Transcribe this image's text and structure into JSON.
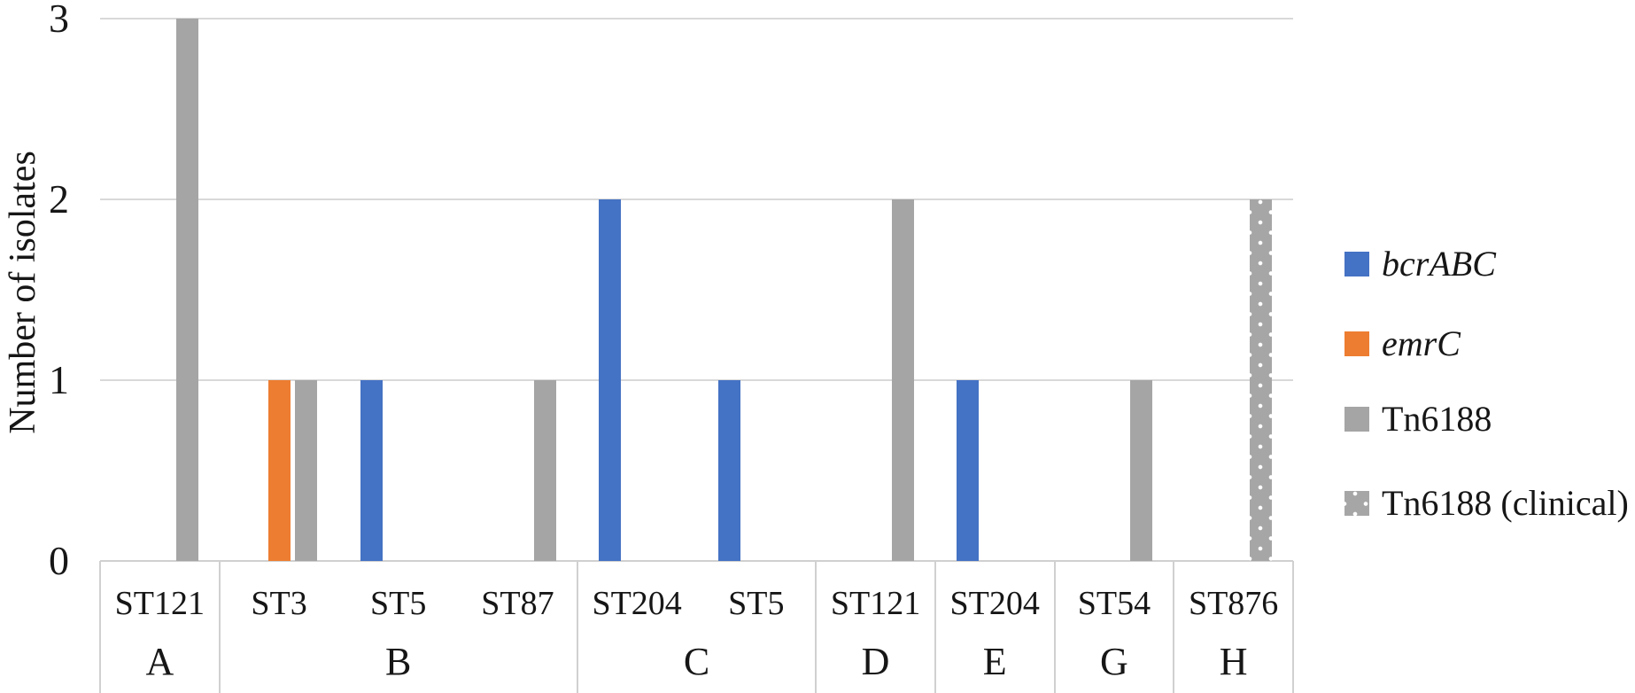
{
  "chart_data": {
    "type": "bar",
    "title": "",
    "ylabel": "Number of isolates",
    "xlabel": "",
    "ylim": [
      0,
      3
    ],
    "yticks": [
      0,
      1,
      2,
      3
    ],
    "grid": "horizontal",
    "legend_position": "right",
    "legend": [
      {
        "label": "bcrABC",
        "color": "#4472C4",
        "italic": true,
        "pattern": "solid"
      },
      {
        "label": "emrC",
        "color": "#ED7D31",
        "italic": true,
        "pattern": "solid"
      },
      {
        "label": "Tn6188",
        "color": "#A5A5A5",
        "italic": false,
        "pattern": "solid"
      },
      {
        "label": "Tn6188 (clinical)",
        "color": "#A6A6A6",
        "italic": false,
        "pattern": "dotted"
      }
    ],
    "groups": [
      {
        "label": "A",
        "categories": [
          {
            "label": "ST121",
            "bars": [
              {
                "series": 2,
                "value": 3
              }
            ]
          }
        ]
      },
      {
        "label": "B",
        "categories": [
          {
            "label": "ST3",
            "bars": [
              {
                "series": 1,
                "value": 1
              },
              {
                "series": 2,
                "value": 1
              }
            ]
          },
          {
            "label": "ST5",
            "bars": [
              {
                "series": 0,
                "value": 1
              }
            ]
          },
          {
            "label": "ST87",
            "bars": [
              {
                "series": 2,
                "value": 1
              }
            ]
          }
        ]
      },
      {
        "label": "C",
        "categories": [
          {
            "label": "ST204",
            "bars": [
              {
                "series": 0,
                "value": 2
              }
            ]
          },
          {
            "label": "ST5",
            "bars": [
              {
                "series": 0,
                "value": 1
              }
            ]
          }
        ]
      },
      {
        "label": "D",
        "categories": [
          {
            "label": "ST121",
            "bars": [
              {
                "series": 2,
                "value": 2
              }
            ]
          }
        ]
      },
      {
        "label": "E",
        "categories": [
          {
            "label": "ST204",
            "bars": [
              {
                "series": 0,
                "value": 1
              }
            ]
          }
        ]
      },
      {
        "label": "G",
        "categories": [
          {
            "label": "ST54",
            "bars": [
              {
                "series": 2,
                "value": 1
              }
            ]
          }
        ]
      },
      {
        "label": "H",
        "categories": [
          {
            "label": "ST876",
            "bars": [
              {
                "series": 3,
                "value": 2
              }
            ]
          }
        ]
      }
    ]
  }
}
